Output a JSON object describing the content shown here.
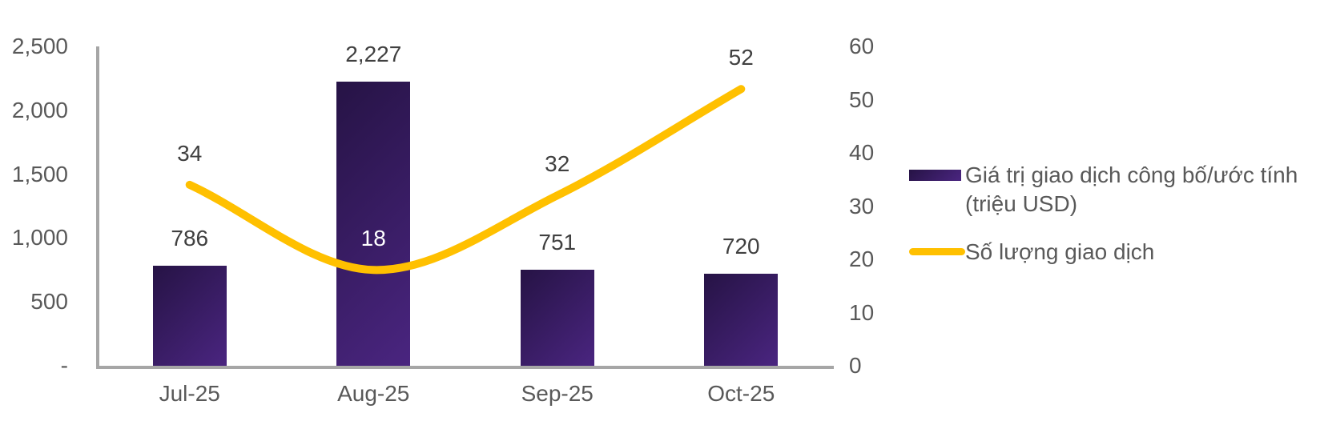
{
  "chart_data": {
    "type": "bar",
    "subtype": "combo-bar-line-dual-axis",
    "title": "",
    "xlabel": "",
    "ylabel": "",
    "grid": false,
    "legend_position": "right",
    "categories": [
      "Jul-25",
      "Aug-25",
      "Sep-25",
      "Oct-25"
    ],
    "series": [
      {
        "name": "Giá trị giao dịch công bố/ước tính (triệu USD)",
        "type": "bar",
        "axis": "left",
        "values": [
          786,
          2227,
          751,
          720
        ],
        "labels": [
          "786",
          "2,227",
          "751",
          "720"
        ],
        "label_colors": [
          "#404040",
          "#404040",
          "#404040",
          "#404040"
        ],
        "gradient_start": "#261345",
        "gradient_end": "#4A2580"
      },
      {
        "name": "Số lượng giao dịch",
        "type": "line",
        "axis": "right",
        "values": [
          34,
          18,
          32,
          52
        ],
        "labels": [
          "34",
          "18",
          "32",
          "52"
        ],
        "label_colors": [
          "#404040",
          "#FFFFFF",
          "#404040",
          "#404040"
        ],
        "color": "#FFC000",
        "smooth": true
      }
    ],
    "left_axis": {
      "min": 0,
      "max": 2500,
      "ticks": [
        {
          "label": "2,500",
          "value": 2500
        },
        {
          "label": "2,000",
          "value": 2000
        },
        {
          "label": "1,500",
          "value": 1500
        },
        {
          "label": "1,000",
          "value": 1000
        },
        {
          "label": "500",
          "value": 500
        },
        {
          "label": "-",
          "value": 0
        }
      ]
    },
    "right_axis": {
      "min": 0,
      "max": 60,
      "ticks": [
        {
          "label": "60",
          "value": 60
        },
        {
          "label": "50",
          "value": 50
        },
        {
          "label": "40",
          "value": 40
        },
        {
          "label": "30",
          "value": 30
        },
        {
          "label": "20",
          "value": 20
        },
        {
          "label": "10",
          "value": 10
        },
        {
          "label": "0",
          "value": 0
        }
      ]
    }
  },
  "colors": {
    "background": "#FFFFFF",
    "axis_line": "#A6A6A6",
    "tick_text": "#595959",
    "data_label_text": "#404040",
    "bar_gradient_start": "#261345",
    "bar_gradient_end": "#4A2580",
    "line": "#FFC000"
  }
}
